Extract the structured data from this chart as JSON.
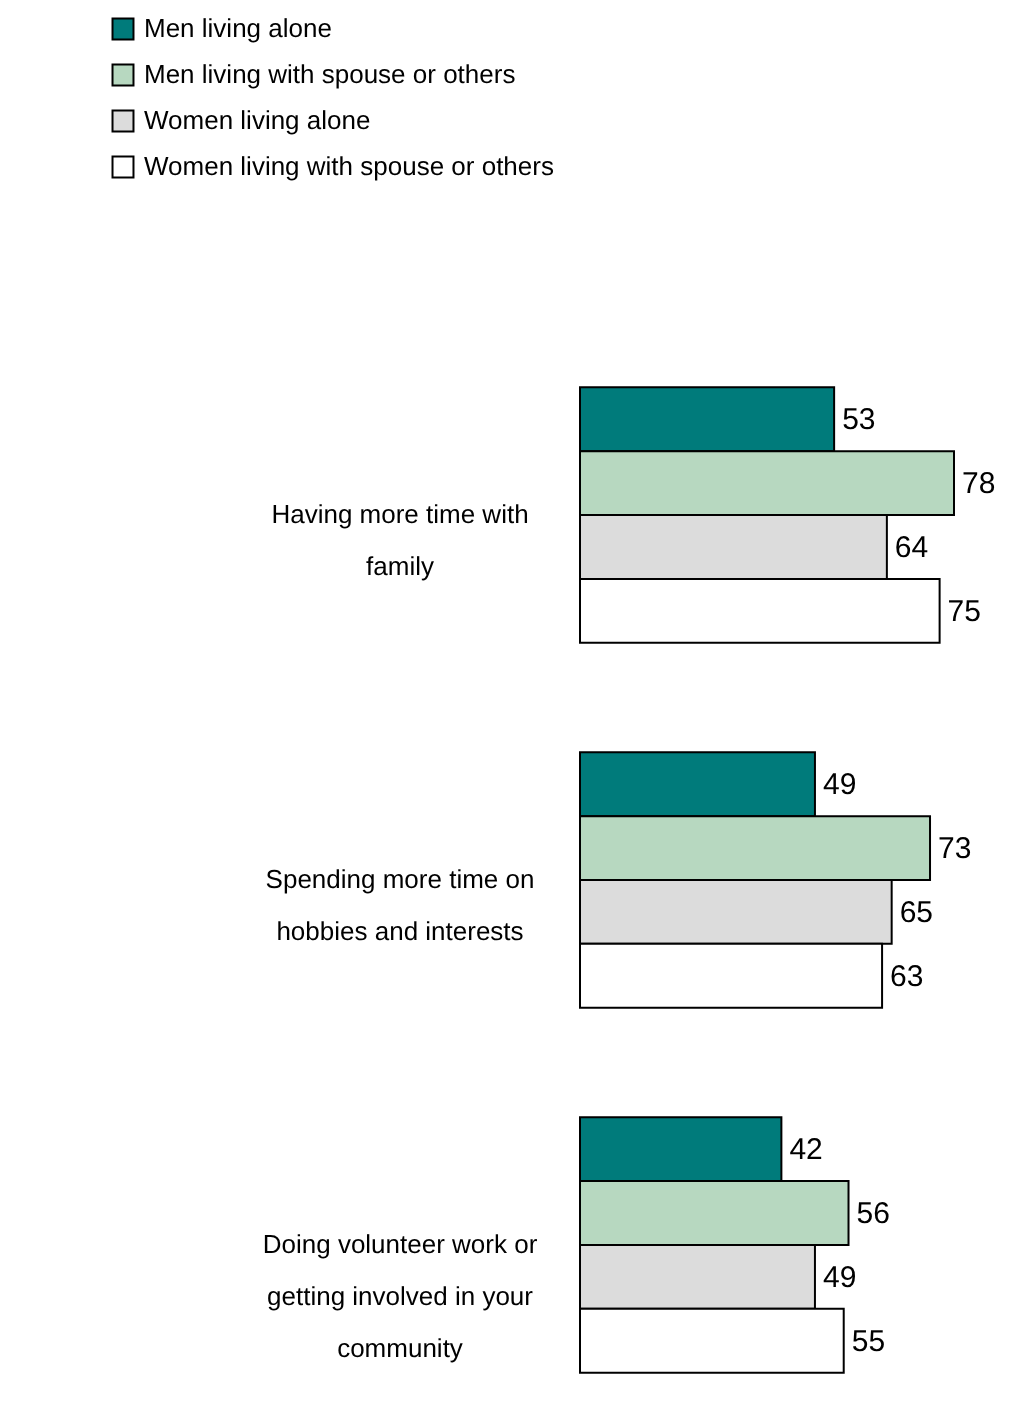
{
  "chart_data": {
    "type": "bar",
    "orientation": "horizontal",
    "data_labels": true,
    "legend": "top left",
    "tick_labels": false,
    "categories": [
      "Having more time with family",
      "Spending more time on hobbies and interests",
      "Doing volunteer work or getting involved in your community"
    ],
    "series": [
      {
        "name": "Men living alone",
        "color": "#007b7b",
        "values": [
          53,
          49,
          42
        ]
      },
      {
        "name": "Men living with spouse or others",
        "color": "#b7d8c0",
        "values": [
          78,
          73,
          56
        ]
      },
      {
        "name": "Women living alone",
        "color": "#dcdcdc",
        "values": [
          64,
          65,
          49
        ]
      },
      {
        "name": "Women living with spouse or others",
        "color": "#ffffff",
        "values": [
          75,
          63,
          55
        ]
      }
    ]
  }
}
